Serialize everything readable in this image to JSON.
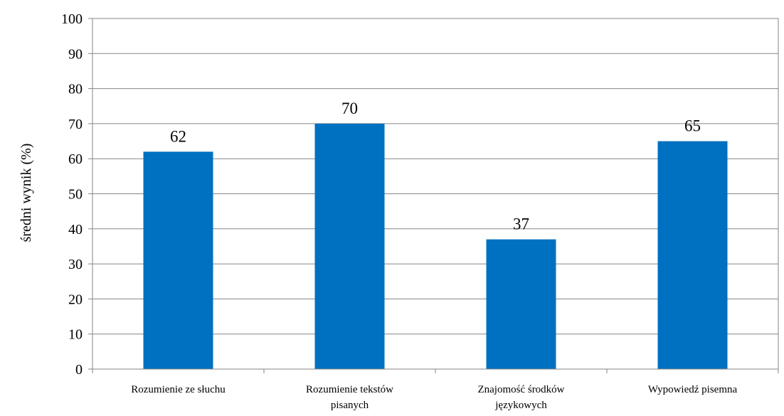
{
  "chart_data": {
    "type": "bar",
    "categories": [
      [
        "Rozumienie ze słuchu"
      ],
      [
        "Rozumienie tekstów",
        "pisanych"
      ],
      [
        "Znajomość środków",
        "językowych"
      ],
      [
        "Wypowiedź pisemna"
      ]
    ],
    "values": [
      62,
      70,
      37,
      65
    ],
    "data_labels": [
      "62",
      "70",
      "37",
      "65"
    ],
    "ylabel": "średni wynik (%)",
    "xlabel": "",
    "ylim": [
      0,
      100
    ],
    "yticks": [
      0,
      10,
      20,
      30,
      40,
      50,
      60,
      70,
      80,
      90,
      100
    ],
    "grid": true,
    "legend": "none",
    "bar_color": "#0070C0",
    "grid_color": "#868686"
  }
}
